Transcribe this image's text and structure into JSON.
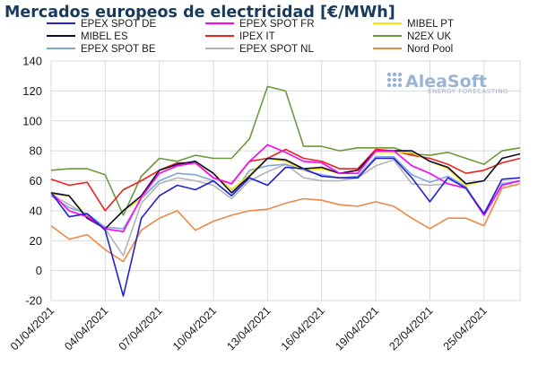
{
  "chart_data": {
    "type": "line",
    "title": "Mercados europeos de electricidad [€/MWh]",
    "xlabel": "",
    "ylabel": "",
    "ylim": [
      -20,
      140
    ],
    "yticks": [
      -20,
      0,
      20,
      40,
      60,
      80,
      100,
      120,
      140
    ],
    "grid": true,
    "legend_position": "top",
    "x": [
      "01/04/2021",
      "02/04/2021",
      "03/04/2021",
      "04/04/2021",
      "05/04/2021",
      "06/04/2021",
      "07/04/2021",
      "08/04/2021",
      "09/04/2021",
      "10/04/2021",
      "11/04/2021",
      "12/04/2021",
      "13/04/2021",
      "14/04/2021",
      "15/04/2021",
      "16/04/2021",
      "17/04/2021",
      "18/04/2021",
      "19/04/2021",
      "20/04/2021",
      "21/04/2021",
      "22/04/2021",
      "23/04/2021",
      "24/04/2021",
      "25/04/2021",
      "26/04/2021",
      "27/04/2021"
    ],
    "xtick_labels": [
      "01/04/2021",
      "04/04/2021",
      "07/04/2021",
      "10/04/2021",
      "13/04/2021",
      "16/04/2021",
      "19/04/2021",
      "22/04/2021",
      "25/04/2021"
    ],
    "series": [
      {
        "name": "EPEX SPOT DE",
        "color": "#2222cc",
        "values": [
          52,
          36,
          38,
          27,
          -17,
          35,
          50,
          57,
          54,
          60,
          50,
          62,
          57,
          69,
          68,
          63,
          62,
          62,
          75,
          75,
          62,
          46,
          62,
          55,
          38,
          61,
          62
        ]
      },
      {
        "name": "EPEX SPOT FR",
        "color": "#ff00ff",
        "values": [
          52,
          40,
          36,
          28,
          26,
          49,
          65,
          70,
          72,
          62,
          58,
          73,
          84,
          79,
          73,
          72,
          65,
          65,
          80,
          80,
          70,
          65,
          58,
          55,
          37,
          57,
          60
        ]
      },
      {
        "name": "MIBEL PT",
        "color": "#f2e600",
        "values": [
          51,
          50,
          36,
          28,
          40,
          48,
          67,
          70,
          72,
          65,
          54,
          64,
          75,
          73,
          67,
          68,
          65,
          67,
          79,
          79,
          79,
          73,
          68,
          57,
          60,
          75,
          78
        ]
      },
      {
        "name": "MIBEL ES",
        "color": "#0a0a3c",
        "values": [
          52,
          50,
          35,
          28,
          40,
          50,
          67,
          71,
          73,
          65,
          52,
          63,
          75,
          74,
          68,
          69,
          65,
          67,
          80,
          80,
          80,
          73,
          69,
          58,
          60,
          75,
          78
        ]
      },
      {
        "name": "IPEX IT",
        "color": "#ee2020",
        "values": [
          61,
          57,
          59,
          40,
          54,
          60,
          67,
          72,
          72,
          62,
          58,
          73,
          75,
          81,
          75,
          73,
          68,
          68,
          81,
          80,
          77,
          75,
          71,
          65,
          67,
          72,
          75
        ]
      },
      {
        "name": "N2EX UK",
        "color": "#6b9a3e",
        "values": [
          67,
          68,
          68,
          64,
          37,
          63,
          75,
          73,
          77,
          75,
          75,
          88,
          123,
          120,
          83,
          83,
          80,
          82,
          82,
          82,
          78,
          77,
          79,
          75,
          71,
          80,
          82
        ]
      },
      {
        "name": "EPEX SPOT BE",
        "color": "#7ea6dc",
        "values": [
          50,
          42,
          38,
          29,
          28,
          48,
          60,
          65,
          64,
          60,
          50,
          67,
          70,
          71,
          67,
          64,
          62,
          63,
          76,
          76,
          64,
          59,
          63,
          56,
          37,
          58,
          60
        ]
      },
      {
        "name": "EPEX SPOT NL",
        "color": "#b3b3b3",
        "values": [
          51,
          44,
          37,
          28,
          10,
          45,
          58,
          62,
          60,
          57,
          48,
          60,
          66,
          71,
          62,
          60,
          60,
          62,
          70,
          74,
          58,
          57,
          58,
          55,
          37,
          57,
          60
        ]
      },
      {
        "name": "Nord Pool",
        "color": "#ee8844",
        "values": [
          30,
          21,
          24,
          14,
          6,
          27,
          35,
          40,
          27,
          33,
          37,
          40,
          41,
          45,
          48,
          47,
          44,
          43,
          46,
          43,
          35,
          28,
          35,
          35,
          30,
          55,
          58
        ]
      }
    ]
  },
  "brand": {
    "name": "AleaSoft",
    "tagline": "ENERGY FORECASTING"
  }
}
